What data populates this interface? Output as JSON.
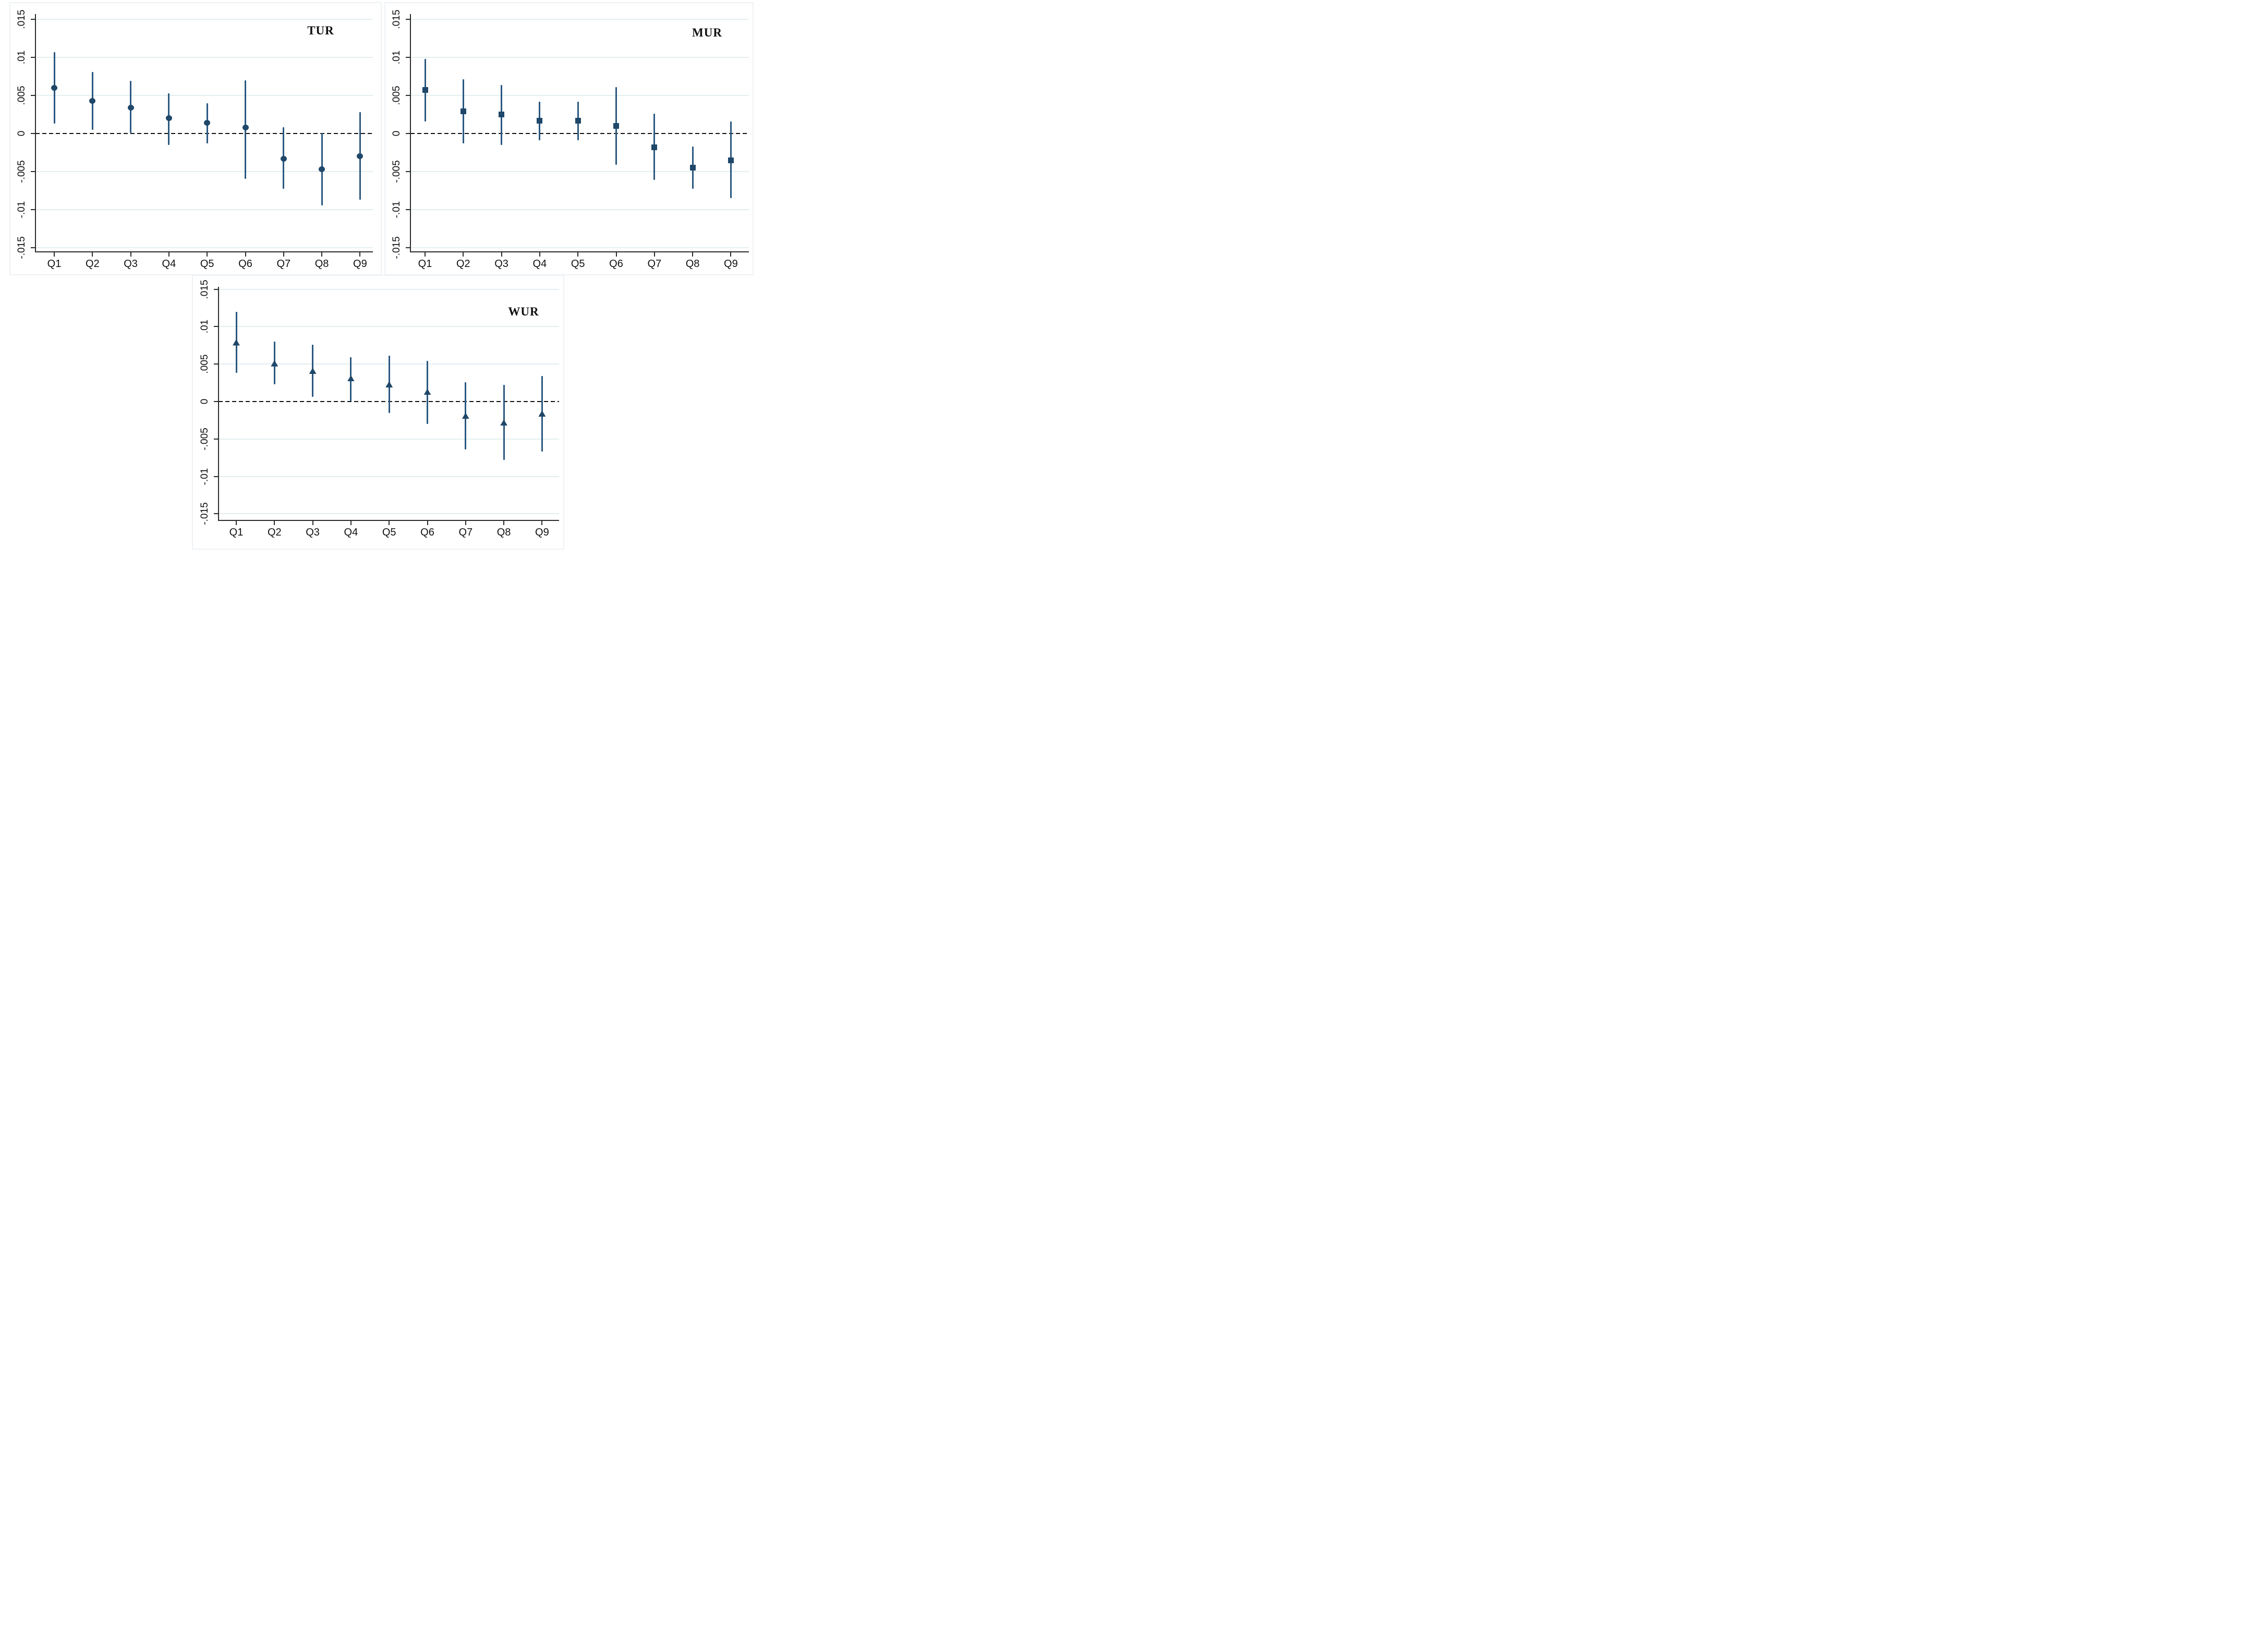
{
  "page": {
    "background": "#ffffff"
  },
  "colors": {
    "marker": "#1f4769",
    "ci_line": "#2a5880",
    "gridline": "#e4eef1",
    "zero_line": "#111111",
    "axis": "#2b2b2b",
    "tick_text": "#111111",
    "panel_border": "#eef2f5"
  },
  "chart_data": [
    {
      "type": "scatter",
      "title": "TUR",
      "marker": "circle",
      "categories": [
        "Q1",
        "Q2",
        "Q3",
        "Q4",
        "Q5",
        "Q6",
        "Q7",
        "Q8",
        "Q9"
      ],
      "estimates": [
        0.006,
        0.0043,
        0.0034,
        0.002,
        0.0014,
        0.0008,
        -0.0033,
        -0.0047,
        -0.003
      ],
      "ci_low": [
        0.0013,
        0.0005,
        0.0001,
        -0.0015,
        -0.0013,
        -0.006,
        -0.0073,
        -0.0095,
        -0.0087
      ],
      "ci_high": [
        0.0107,
        0.0081,
        0.0069,
        0.0053,
        0.004,
        0.007,
        0.0008,
        0.0001,
        0.0028
      ],
      "ytick_labels": [
        ".015",
        ".01",
        ".005",
        "0",
        "-.005",
        "-.01",
        "-.015"
      ],
      "ytick_values": [
        0.015,
        0.01,
        0.005,
        0,
        -0.005,
        -0.01,
        -0.015
      ],
      "ylim": [
        -0.0165,
        0.0165
      ],
      "zero_reference_line": "dashed",
      "grid": true,
      "legend": "none"
    },
    {
      "type": "scatter",
      "title": "MUR",
      "marker": "square",
      "categories": [
        "Q1",
        "Q2",
        "Q3",
        "Q4",
        "Q5",
        "Q6",
        "Q7",
        "Q8",
        "Q9"
      ],
      "estimates": [
        0.0057,
        0.0029,
        0.0025,
        0.0017,
        0.0017,
        0.001,
        -0.0018,
        -0.0045,
        -0.0035
      ],
      "ci_low": [
        0.0016,
        -0.0013,
        -0.0015,
        -0.0009,
        -0.0009,
        -0.0041,
        -0.0061,
        -0.0073,
        -0.0085
      ],
      "ci_high": [
        0.0098,
        0.0071,
        0.0064,
        0.0042,
        0.0042,
        0.0061,
        0.0026,
        -0.0017,
        0.0016
      ],
      "ytick_labels": [
        ".015",
        ".01",
        ".005",
        "0",
        "-.005",
        "-.01",
        "-.015"
      ],
      "ytick_values": [
        0.015,
        0.01,
        0.005,
        0,
        -0.005,
        -0.01,
        -0.015
      ],
      "ylim": [
        -0.0165,
        0.0165
      ],
      "zero_reference_line": "dashed",
      "grid": true,
      "legend": "none"
    },
    {
      "type": "scatter",
      "title": "WUR",
      "marker": "triangle",
      "categories": [
        "Q1",
        "Q2",
        "Q3",
        "Q4",
        "Q5",
        "Q6",
        "Q7",
        "Q8",
        "Q9"
      ],
      "estimates": [
        0.0079,
        0.0051,
        0.0041,
        0.0031,
        0.0023,
        0.0013,
        -0.0019,
        -0.0028,
        -0.0016
      ],
      "ci_low": [
        0.0038,
        0.0023,
        0.0006,
        0.0001,
        -0.0015,
        -0.003,
        -0.0064,
        -0.0078,
        -0.0067
      ],
      "ci_high": [
        0.012,
        0.008,
        0.0076,
        0.0059,
        0.0061,
        0.0054,
        0.0026,
        0.0022,
        0.0034
      ],
      "ytick_labels": [
        ".015",
        ".01",
        ".005",
        "0",
        "-.005",
        "-.01",
        "-.015"
      ],
      "ytick_values": [
        0.015,
        0.01,
        0.005,
        0,
        -0.005,
        -0.01,
        -0.015
      ],
      "ylim": [
        -0.0165,
        0.0165
      ],
      "zero_reference_line": "dashed",
      "grid": true,
      "legend": "none"
    }
  ]
}
